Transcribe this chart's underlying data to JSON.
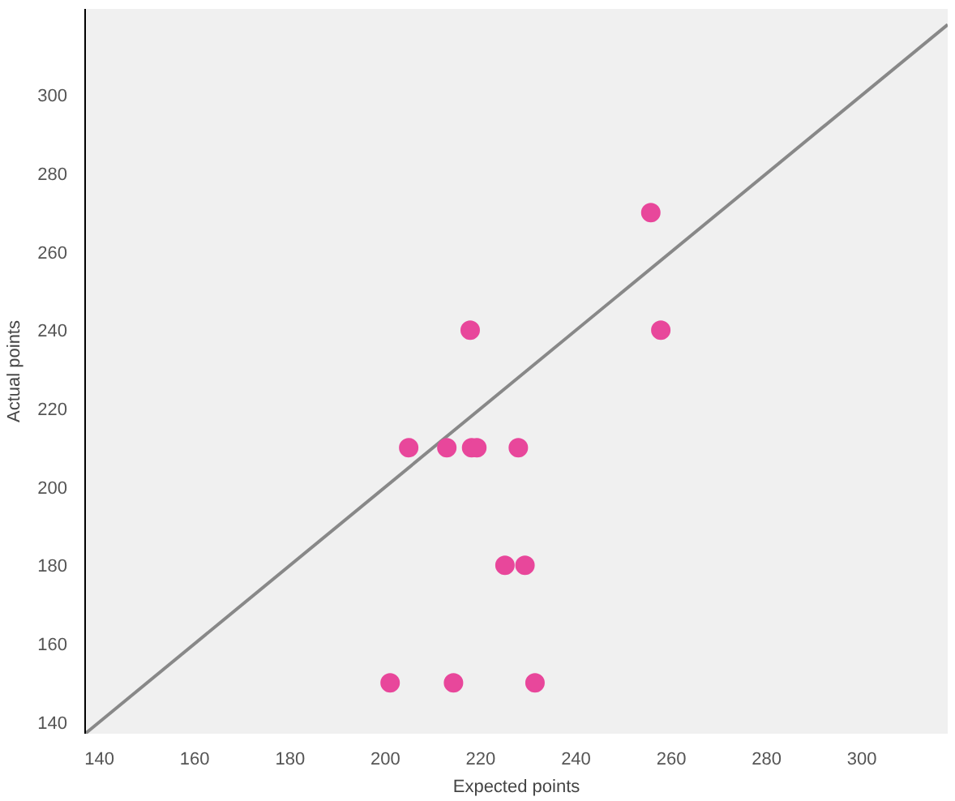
{
  "chart_data": {
    "type": "scatter",
    "xlabel": "Expected points",
    "ylabel": "Actual points",
    "xlim": [
      137,
      318
    ],
    "ylim": [
      137,
      322
    ],
    "xticks": [
      140,
      160,
      180,
      200,
      220,
      240,
      260,
      280,
      300
    ],
    "yticks": [
      140,
      160,
      180,
      200,
      220,
      240,
      260,
      280,
      300
    ],
    "grid": false,
    "series": [
      {
        "type": "line",
        "color": "#888888",
        "x": [
          137,
          318
        ],
        "values": [
          137,
          318
        ],
        "line_style": "solid"
      },
      {
        "marker": "circle",
        "color": "#e8479b",
        "x": [
          255.7,
          257.8,
          217.8,
          204.9,
          212.9,
          218.1,
          219.2,
          227.9,
          225.1,
          229.3,
          201,
          214.3,
          231.4
        ],
        "values": [
          270,
          240,
          240,
          210,
          210,
          210,
          210,
          210,
          180,
          180,
          150,
          150,
          150
        ]
      }
    ]
  }
}
